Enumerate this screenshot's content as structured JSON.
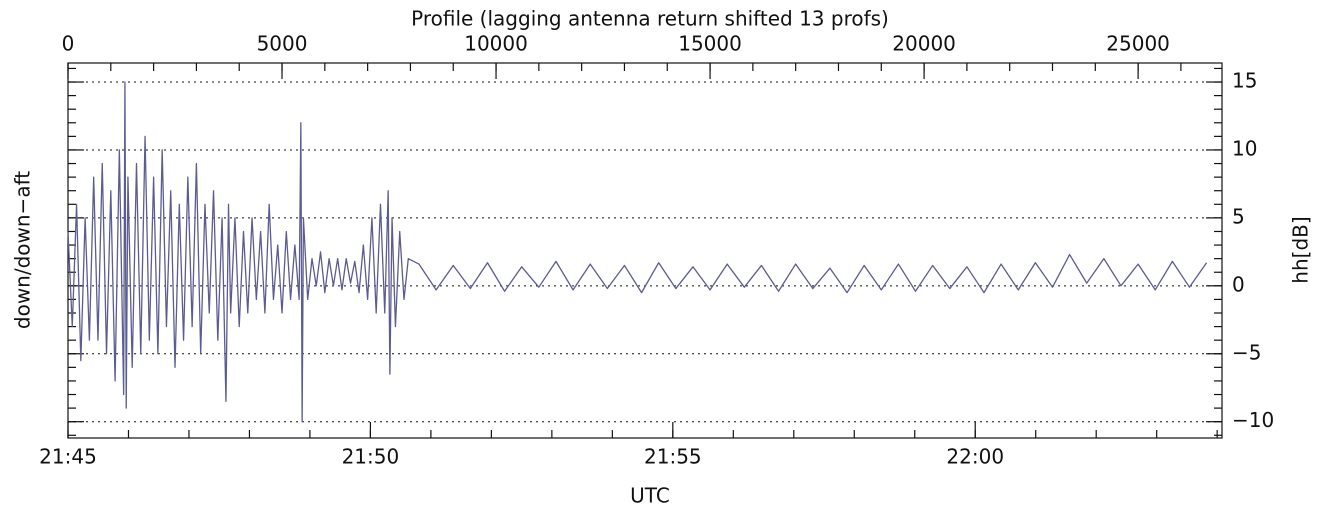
{
  "chart_data": {
    "type": "line",
    "title": "Profile (lagging antenna return shifted 13 profs)",
    "ylabel": "down/down−aft",
    "y2label": "hh[dB]",
    "xlabel": "UTC",
    "color": "#5c5c92",
    "grid": true,
    "xlim": [
      0,
      26960
    ],
    "xticks": [
      0,
      5000,
      10000,
      15000,
      20000,
      25000
    ],
    "x2lim": [
      0,
      19.08
    ],
    "x2ticks": [
      {
        "value": 0,
        "label": "21:45"
      },
      {
        "value": 5,
        "label": "21:50"
      },
      {
        "value": 10,
        "label": "21:55"
      },
      {
        "value": 15,
        "label": "22:00"
      }
    ],
    "ylim": [
      -11.2,
      16.4
    ],
    "yticks": [
      {
        "value": -10,
        "label": "−10"
      },
      {
        "value": -5,
        "label": "−5"
      },
      0,
      5,
      10,
      15
    ],
    "x": [
      0,
      100,
      200,
      300,
      400,
      500,
      600,
      700,
      800,
      900,
      1000,
      1100,
      1200,
      1300,
      1330,
      1360,
      1400,
      1500,
      1600,
      1700,
      1800,
      1900,
      2000,
      2100,
      2200,
      2300,
      2400,
      2500,
      2600,
      2700,
      2800,
      2900,
      3000,
      3100,
      3200,
      3300,
      3400,
      3500,
      3600,
      3690,
      3750,
      3800,
      3900,
      4000,
      4100,
      4200,
      4300,
      4400,
      4500,
      4600,
      4700,
      4800,
      4900,
      5000,
      5100,
      5200,
      5300,
      5400,
      5440,
      5470,
      5500,
      5600,
      5700,
      5800,
      5900,
      6000,
      6100,
      6200,
      6300,
      6400,
      6500,
      6600,
      6700,
      6800,
      6900,
      7000,
      7100,
      7200,
      7300,
      7400,
      7480,
      7520,
      7570,
      7650,
      7750,
      7850,
      7950,
      8200,
      8600,
      9000,
      9400,
      9800,
      10200,
      10600,
      11000,
      11400,
      11800,
      12200,
      12600,
      13000,
      13400,
      13800,
      14200,
      14600,
      15000,
      15400,
      15800,
      16200,
      16600,
      17000,
      17400,
      17800,
      18200,
      18600,
      19000,
      19400,
      19800,
      20200,
      20600,
      21000,
      21400,
      21800,
      22200,
      22600,
      23000,
      23400,
      23800,
      24200,
      24600,
      25000,
      25400,
      25800,
      26200,
      26600
    ],
    "values": [
      4,
      -3,
      6,
      -5.5,
      5,
      -4,
      8,
      -4,
      9,
      -5,
      7,
      -7,
      10,
      -8,
      15,
      -9,
      8,
      -6,
      9,
      -5,
      11,
      -4,
      8,
      -5,
      10,
      -3,
      7,
      -6,
      6,
      -4,
      8,
      -3,
      9,
      -5,
      6,
      -2,
      7,
      -4,
      5,
      -8.5,
      6,
      -2,
      5,
      -3,
      4,
      -2,
      5,
      -1,
      4,
      -2,
      6,
      -1,
      3,
      -2,
      4,
      -1,
      3,
      -1,
      12,
      -10,
      5,
      -1,
      2,
      0,
      2.5,
      -0.5,
      2,
      0,
      2,
      -0.3,
      2,
      0.2,
      1.8,
      -0.5,
      3,
      -1,
      5,
      -2,
      6,
      -2,
      7,
      -6.5,
      5,
      -3,
      4,
      -1,
      2,
      1.6,
      -0.3,
      1.5,
      -0.2,
      1.7,
      -0.4,
      1.4,
      -0.1,
      1.8,
      -0.3,
      1.6,
      -0.2,
      1.5,
      -0.5,
      1.7,
      -0.2,
      1.4,
      -0.3,
      1.6,
      -0.1,
      1.5,
      -0.4,
      1.6,
      -0.2,
      1.3,
      -0.5,
      1.5,
      -0.3,
      1.6,
      -0.4,
      1.5,
      -0.2,
      1.4,
      -0.5,
      1.6,
      -0.3,
      1.7,
      -0.1,
      2.3,
      0.2,
      2.0,
      0,
      1.6,
      -0.3,
      1.8,
      -0.1,
      1.7
    ]
  }
}
